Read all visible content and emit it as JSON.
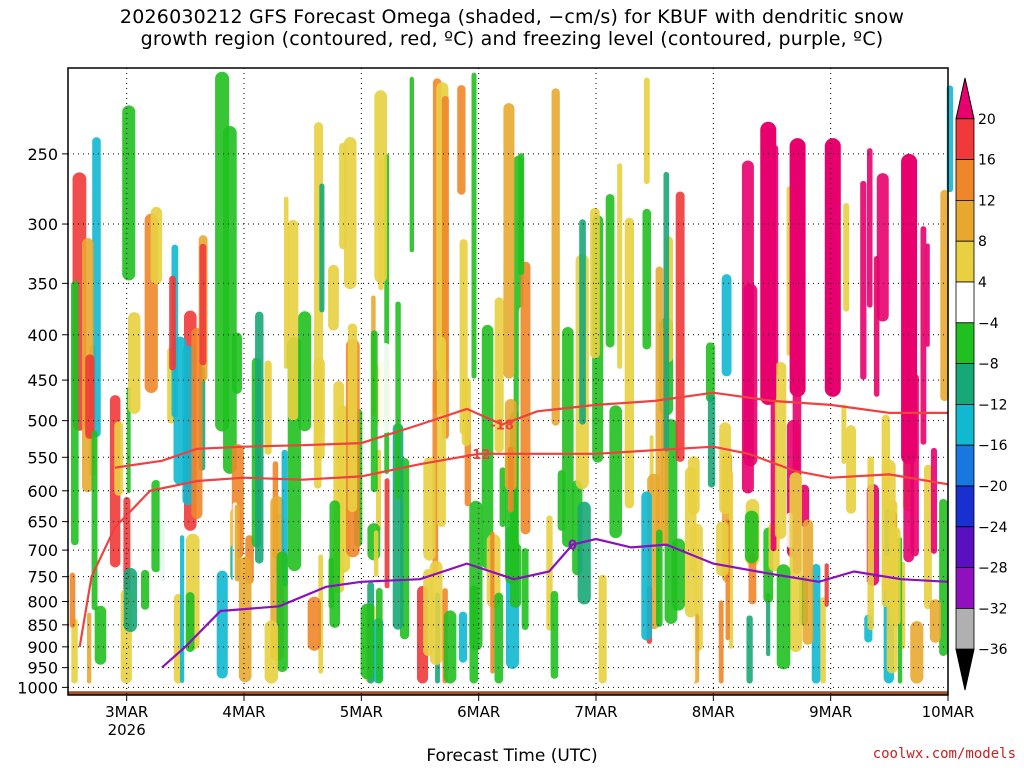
{
  "title_line1": "2026030212 GFS Forecast Omega (shaded, −cm/s) for KBUF with dendritic snow",
  "title_line2": "growth region (contoured, red, ºC) and freezing level (contoured, purple, ºC)",
  "watermark": "coolwx.com/models",
  "chart_data": {
    "type": "heatmap",
    "title": "2026030212 GFS Forecast Omega (shaded, −cm/s) for KBUF with dendritic snow growth region (contoured, red, ºC) and freezing level (contoured, purple, ºC)",
    "xlabel": "Forecast Time (UTC)",
    "ylabel": "",
    "x_ticks": [
      "3MAR",
      "4MAR",
      "5MAR",
      "6MAR",
      "7MAR",
      "8MAR",
      "9MAR",
      "10MAR"
    ],
    "x_sub_label": "2026",
    "y_ticks": [
      250,
      300,
      350,
      400,
      450,
      500,
      550,
      600,
      650,
      700,
      750,
      800,
      850,
      900,
      950,
      1000
    ],
    "y_range_hPa": [
      200,
      1020
    ],
    "x_range_days": [
      2.5,
      10.0
    ],
    "grid": true,
    "colorbar": {
      "levels": [
        "20",
        "16",
        "12",
        "8",
        "4",
        "−4",
        "−8",
        "−12",
        "−16",
        "−20",
        "−24",
        "−28",
        "−32",
        "−36"
      ],
      "colors": [
        "#e8006e",
        "#f03a3a",
        "#f0862a",
        "#e8a830",
        "#e8d040",
        "#ffffff",
        "#20c020",
        "#18a878",
        "#10b8d0",
        "#1878e0",
        "#1830d0",
        "#5a10c0",
        "#9010c0",
        "#b0b0b0",
        "#000000"
      ]
    },
    "series": [
      {
        "name": "-18",
        "points": [
          [
            2.9,
            565
          ],
          [
            3.3,
            555
          ],
          [
            3.6,
            538
          ],
          [
            4.0,
            535
          ],
          [
            4.5,
            533
          ],
          [
            5.0,
            530
          ],
          [
            5.5,
            505
          ],
          [
            5.9,
            485
          ],
          [
            6.2,
            505
          ],
          [
            6.5,
            488
          ],
          [
            7.0,
            480
          ],
          [
            7.5,
            475
          ],
          [
            8.0,
            465
          ],
          [
            8.5,
            475
          ],
          [
            9.0,
            480
          ],
          [
            9.5,
            490
          ],
          [
            10.0,
            490
          ]
        ]
      },
      {
        "name": "-12",
        "points": [
          [
            2.6,
            900
          ],
          [
            2.7,
            750
          ],
          [
            2.9,
            660
          ],
          [
            3.2,
            600
          ],
          [
            3.6,
            585
          ],
          [
            4.0,
            580
          ],
          [
            4.5,
            583
          ],
          [
            5.0,
            578
          ],
          [
            5.5,
            560
          ],
          [
            6.0,
            545
          ],
          [
            6.5,
            545
          ],
          [
            7.0,
            545
          ],
          [
            7.5,
            540
          ],
          [
            8.0,
            535
          ],
          [
            8.3,
            545
          ],
          [
            8.7,
            570
          ],
          [
            9.0,
            580
          ],
          [
            9.5,
            575
          ],
          [
            10.0,
            590
          ]
        ]
      },
      {
        "name": "0",
        "points": [
          [
            3.3,
            950
          ],
          [
            3.5,
            900
          ],
          [
            3.8,
            820
          ],
          [
            4.3,
            810
          ],
          [
            4.7,
            770
          ],
          [
            5.0,
            760
          ],
          [
            5.5,
            755
          ],
          [
            5.9,
            725
          ],
          [
            6.3,
            755
          ],
          [
            6.6,
            740
          ],
          [
            6.8,
            690
          ],
          [
            7.0,
            680
          ],
          [
            7.3,
            695
          ],
          [
            7.6,
            690
          ],
          [
            8.0,
            725
          ],
          [
            8.5,
            745
          ],
          [
            8.9,
            760
          ],
          [
            9.2,
            740
          ],
          [
            9.6,
            755
          ],
          [
            10.0,
            760
          ]
        ]
      }
    ]
  }
}
